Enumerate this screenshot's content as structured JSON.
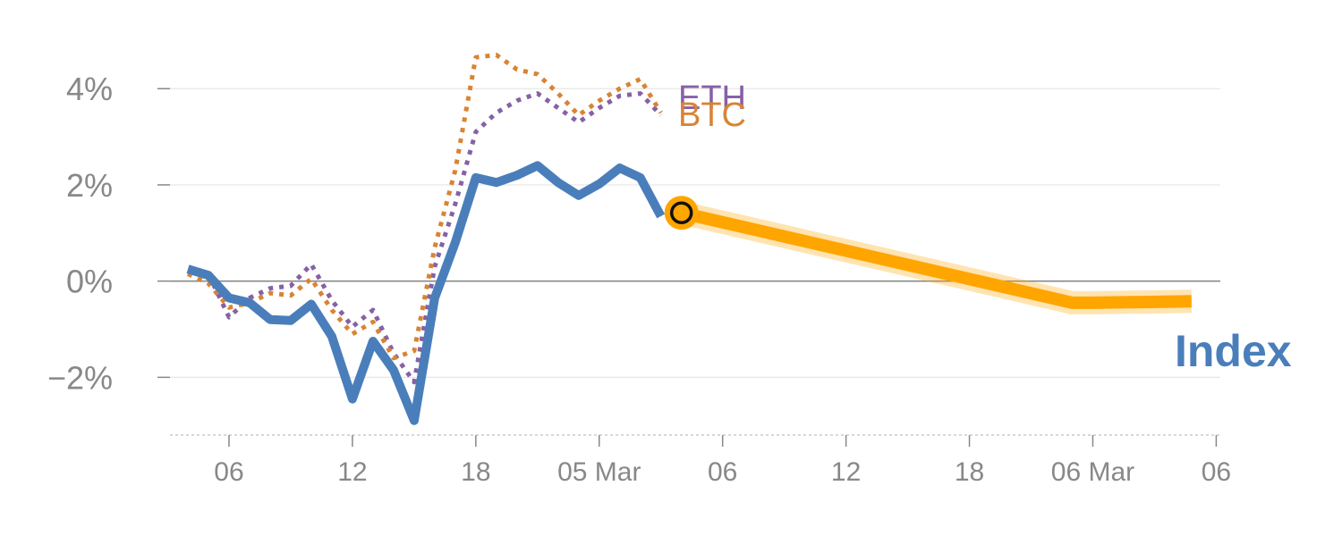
{
  "chart_data": {
    "type": "line",
    "x_tick_labels": [
      "06",
      "12",
      "18",
      "05 Mar",
      "06",
      "12",
      "18",
      "06 Mar",
      "06"
    ],
    "y_tick_labels": [
      "4%",
      "2%",
      "0%",
      "−2%"
    ],
    "y_ticks": [
      4,
      2,
      0,
      -2
    ],
    "ylim": [
      -3.2,
      5.1
    ],
    "xlim": [
      -1,
      49.2
    ],
    "x_tick_positions": [
      1,
      7,
      13,
      19,
      25,
      31,
      37,
      43,
      49
    ],
    "series": [
      {
        "name": "Index",
        "label": "Index",
        "color": "#4a7ebb",
        "style": "solid",
        "points": [
          [
            -1,
            0.25
          ],
          [
            0,
            0.12
          ],
          [
            1,
            -0.35
          ],
          [
            2,
            -0.45
          ],
          [
            3,
            -0.8
          ],
          [
            4,
            -0.82
          ],
          [
            5,
            -0.48
          ],
          [
            6,
            -1.15
          ],
          [
            7,
            -2.45
          ],
          [
            8,
            -1.25
          ],
          [
            9,
            -1.85
          ],
          [
            10,
            -2.9
          ],
          [
            11,
            -0.35
          ],
          [
            12,
            0.8
          ],
          [
            13,
            2.15
          ],
          [
            14,
            2.05
          ],
          [
            15,
            2.2
          ],
          [
            16,
            2.4
          ],
          [
            17,
            2.05
          ],
          [
            18,
            1.78
          ],
          [
            19,
            2.02
          ],
          [
            20,
            2.35
          ],
          [
            21,
            2.15
          ],
          [
            22,
            1.35
          ]
        ]
      },
      {
        "name": "ETH",
        "label": "ETH",
        "color": "#8661a5",
        "style": "dotted",
        "points": [
          [
            -1,
            0.2
          ],
          [
            0,
            0.15
          ],
          [
            1,
            -0.75
          ],
          [
            2,
            -0.35
          ],
          [
            3,
            -0.15
          ],
          [
            4,
            -0.1
          ],
          [
            5,
            0.35
          ],
          [
            6,
            -0.4
          ],
          [
            7,
            -0.95
          ],
          [
            8,
            -0.6
          ],
          [
            9,
            -1.5
          ],
          [
            10,
            -2.1
          ],
          [
            11,
            0.3
          ],
          [
            12,
            1.6
          ],
          [
            13,
            3.1
          ],
          [
            14,
            3.5
          ],
          [
            15,
            3.75
          ],
          [
            16,
            3.9
          ],
          [
            17,
            3.6
          ],
          [
            18,
            3.3
          ],
          [
            19,
            3.6
          ],
          [
            20,
            3.85
          ],
          [
            21,
            3.9
          ],
          [
            22,
            3.45
          ]
        ]
      },
      {
        "name": "BTC",
        "label": "BTC",
        "color": "#d88434",
        "style": "dotted",
        "points": [
          [
            -1,
            0.15
          ],
          [
            0,
            -0.05
          ],
          [
            1,
            -0.55
          ],
          [
            2,
            -0.45
          ],
          [
            3,
            -0.25
          ],
          [
            4,
            -0.3
          ],
          [
            5,
            0.05
          ],
          [
            6,
            -0.6
          ],
          [
            7,
            -1.1
          ],
          [
            8,
            -0.85
          ],
          [
            9,
            -1.6
          ],
          [
            10,
            -1.45
          ],
          [
            11,
            0.7
          ],
          [
            12,
            2.3
          ],
          [
            13,
            4.65
          ],
          [
            14,
            4.7
          ],
          [
            15,
            4.4
          ],
          [
            16,
            4.3
          ],
          [
            17,
            3.9
          ],
          [
            18,
            3.45
          ],
          [
            19,
            3.75
          ],
          [
            20,
            4.0
          ],
          [
            21,
            4.2
          ],
          [
            22,
            3.5
          ]
        ]
      },
      {
        "name": "Index forecast",
        "color": "#ffa500",
        "style": "band",
        "points": [
          [
            23,
            1.42
          ],
          [
            42,
            -0.45
          ],
          [
            43,
            -0.45
          ],
          [
            47.8,
            -0.42
          ]
        ]
      }
    ],
    "marker": {
      "x": 23,
      "y": 1.42,
      "color": "#ffa500"
    },
    "grid": "horizontal",
    "xlabel": "",
    "ylabel": "",
    "title": ""
  }
}
